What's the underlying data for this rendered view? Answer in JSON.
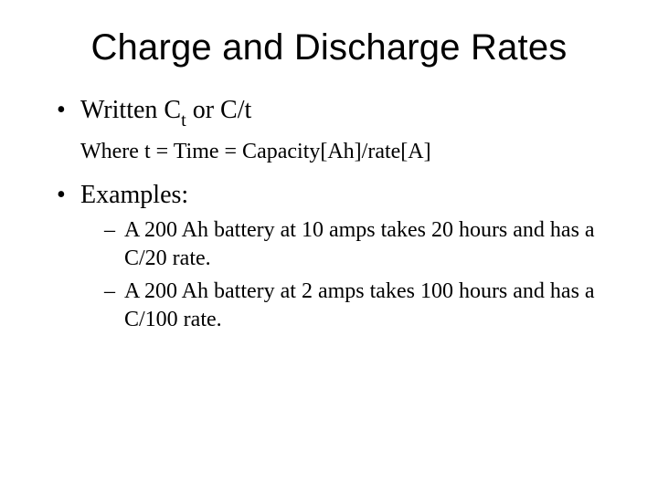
{
  "colors": {
    "background": "#ffffff",
    "text": "#000000"
  },
  "typography": {
    "title_font_family": "Arial",
    "title_fontsize_pt": 40,
    "title_weight": "normal",
    "body_font_family": "Times New Roman",
    "level1_fontsize_pt": 28,
    "subnote_fontsize_pt": 24,
    "level2_fontsize_pt": 24
  },
  "title": "Charge and Discharge Rates",
  "bullets": [
    {
      "prefix": "Written C",
      "subscript": "t",
      "suffix": " or C/t",
      "note": "Where t = Time = Capacity[Ah]/rate[A]"
    },
    {
      "text": "Examples:",
      "children": [
        "A 200 Ah battery at 10 amps takes 20 hours and has a C/20 rate.",
        "A 200 Ah battery at 2 amps takes 100 hours and has a C/100 rate."
      ]
    }
  ]
}
